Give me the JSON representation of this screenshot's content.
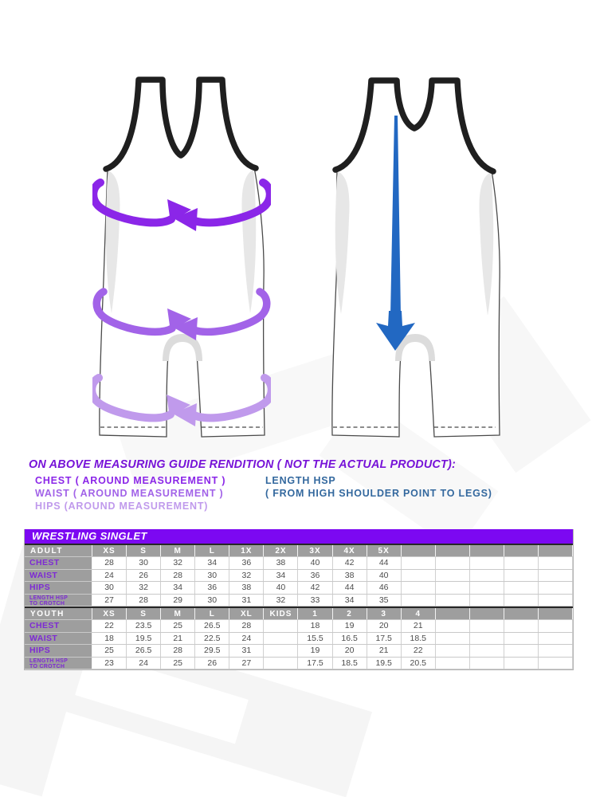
{
  "colors": {
    "chest_arrow": "#8b26e8",
    "waist_arrow": "#a263e8",
    "hips_arrow": "#c09aec",
    "length_arrow": "#2268c2",
    "heading_purple": "#7713d8",
    "length_text_blue": "#33689e",
    "table_bar_purple": "#7c08f2",
    "table_header_gray": "#9e9e9e",
    "row_label_purple": "#7e2bd4"
  },
  "guide": {
    "heading": "ON ABOVE MEASURING GUIDE RENDITION ( NOT THE ACTUAL PRODUCT):",
    "chest_label": "CHEST ( AROUND MEASUREMENT )",
    "waist_label": "WAIST ( AROUND MEASUREMENT )",
    "hips_label": "HIPS (AROUND MEASUREMENT)",
    "length_label": "LENGTH HSP",
    "length_note": "( FROM HIGH SHOULDER  POINT TO LEGS)"
  },
  "size_chart": {
    "title": "WRESTLING SINGLET",
    "sections": [
      {
        "name": "ADULT",
        "sizes": [
          "XS",
          "S",
          "M",
          "L",
          "1X",
          "2X",
          "3X",
          "4X",
          "5X",
          "",
          "",
          "",
          "",
          ""
        ],
        "rows": [
          {
            "label": "CHEST",
            "small": false,
            "values": [
              "28",
              "30",
              "32",
              "34",
              "36",
              "38",
              "40",
              "42",
              "44",
              "",
              "",
              "",
              "",
              ""
            ]
          },
          {
            "label": "WAIST",
            "small": false,
            "values": [
              "24",
              "26",
              "28",
              "30",
              "32",
              "34",
              "36",
              "38",
              "40",
              "",
              "",
              "",
              "",
              ""
            ]
          },
          {
            "label": "HIPS",
            "small": false,
            "values": [
              "30",
              "32",
              "34",
              "36",
              "38",
              "40",
              "42",
              "44",
              "46",
              "",
              "",
              "",
              "",
              ""
            ]
          },
          {
            "label": "LENGTH HSP\nTO CROTCH",
            "small": true,
            "values": [
              "27",
              "28",
              "29",
              "30",
              "31",
              "32",
              "33",
              "34",
              "35",
              "",
              "",
              "",
              "",
              ""
            ]
          }
        ]
      },
      {
        "name": "YOUTH",
        "sizes": [
          "XS",
          "S",
          "M",
          "L",
          "XL",
          "KIDS",
          "1",
          "2",
          "3",
          "4",
          "",
          "",
          "",
          ""
        ],
        "rows": [
          {
            "label": "CHEST",
            "small": false,
            "values": [
              "22",
              "23.5",
              "25",
              "26.5",
              "28",
              "",
              "18",
              "19",
              "20",
              "21",
              "",
              "",
              "",
              ""
            ]
          },
          {
            "label": "WAIST",
            "small": false,
            "values": [
              "18",
              "19.5",
              "21",
              "22.5",
              "24",
              "",
              "15.5",
              "16.5",
              "17.5",
              "18.5",
              "",
              "",
              "",
              ""
            ]
          },
          {
            "label": "HIPS",
            "small": false,
            "values": [
              "25",
              "26.5",
              "28",
              "29.5",
              "31",
              "",
              "19",
              "20",
              "21",
              "22",
              "",
              "",
              "",
              ""
            ]
          },
          {
            "label": "LENGTH HSP\nTO CROTCH",
            "small": true,
            "values": [
              "23",
              "24",
              "25",
              "26",
              "27",
              "",
              "17.5",
              "18.5",
              "19.5",
              "20.5",
              "",
              "",
              "",
              ""
            ]
          }
        ]
      }
    ]
  }
}
